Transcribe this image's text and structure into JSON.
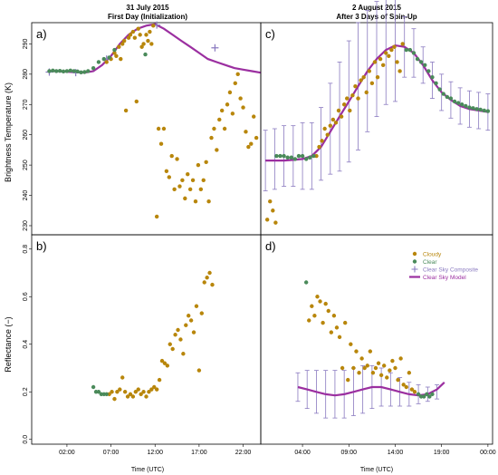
{
  "figure": {
    "col_left_title": [
      "31 July 2015",
      "First Day (Initialization)"
    ],
    "col_right_title": [
      "2 August 2015",
      "After 3 Days of Spin-Up"
    ],
    "ylabel_top": "Brightness Temperature (K)",
    "ylabel_bottom": "Reflectance (−)",
    "xlabel": "Time (UTC)"
  },
  "colors": {
    "cloudy": "#b8860b",
    "clear": "#4a8a5a",
    "composite": "#8a7ac0",
    "model": "#9b2fa0"
  },
  "legend": {
    "placement": "top-right of panel d",
    "items": [
      {
        "label": "Cloudy",
        "kind": "cloudy"
      },
      {
        "label": "Clear",
        "kind": "clear"
      },
      {
        "label": "Clear Sky Composite",
        "kind": "composite"
      },
      {
        "label": "Clear Sky Model",
        "kind": "model"
      }
    ]
  },
  "chart_data": [
    {
      "panel": "a",
      "type": "scatter",
      "x_unit": "hours UTC",
      "xlim": [
        -2,
        24
      ],
      "xticks": [
        2,
        7,
        12,
        17,
        22
      ],
      "xtick_labels": [
        "02:00",
        "07:00",
        "12:00",
        "17:00",
        "22:00"
      ],
      "ylim": [
        227,
        297
      ],
      "yticks": [
        230,
        240,
        250,
        260,
        270,
        280,
        290
      ],
      "model": {
        "x": [
          0,
          1,
          2,
          3,
          4,
          5,
          6,
          7,
          8,
          9,
          10,
          11,
          12,
          13,
          14,
          15,
          16,
          17,
          18,
          19,
          20,
          21,
          22,
          23,
          24
        ],
        "y": [
          281,
          281,
          280.8,
          280.6,
          280.5,
          281,
          283,
          286,
          290,
          293,
          295,
          296,
          296.5,
          295,
          293,
          291,
          289,
          287,
          285,
          284,
          283,
          282,
          281.5,
          281,
          280.5
        ]
      },
      "composite": {
        "x": [
          0,
          3,
          6.5,
          12.2,
          18.8
        ],
        "y": [
          280.7,
          280.5,
          285,
          296.2,
          288.7
        ]
      },
      "clear": {
        "x": [
          0,
          0.4,
          0.8,
          1.2,
          1.6,
          2,
          2.4,
          2.8,
          3.2,
          3.6,
          4,
          4.4,
          5,
          5.6,
          6.2,
          6.8,
          7.4,
          10.9
        ],
        "y": [
          281,
          281.2,
          281,
          281.1,
          280.9,
          281,
          281.2,
          281,
          280.9,
          280.6,
          280.7,
          281,
          282,
          284,
          285,
          285.5,
          288,
          286.5
        ]
      },
      "cloudy": {
        "x": [
          6.5,
          7.0,
          7.4,
          7.6,
          7.9,
          8.1,
          8.3,
          8.5,
          8.7,
          9.0,
          9.2,
          9.5,
          9.7,
          9.9,
          10.1,
          10.3,
          10.5,
          10.7,
          11.0,
          11.2,
          11.4,
          11.6,
          11.8,
          12.2,
          12.4,
          12.7,
          13.0,
          13.3,
          13.6,
          13.9,
          14.2,
          14.5,
          14.8,
          15.1,
          15.4,
          15.7,
          16.0,
          16.3,
          16.6,
          16.9,
          17.2,
          17.5,
          17.8,
          18.1,
          18.4,
          18.7,
          19.0,
          19.3,
          19.6,
          19.9,
          20.2,
          20.5,
          20.8,
          21.1,
          21.4,
          21.7,
          22.0,
          22.3,
          22.6,
          22.9,
          23.2,
          23.5
        ],
        "y": [
          284,
          285,
          287,
          286,
          289,
          285,
          290,
          291,
          268,
          292,
          293,
          294,
          292,
          271,
          295,
          293,
          289,
          290,
          293,
          291,
          294,
          290,
          296,
          233,
          262,
          257,
          262,
          248,
          246,
          253,
          242,
          252,
          243,
          245,
          239,
          247,
          242,
          245,
          238,
          250,
          242,
          245,
          251,
          238,
          259,
          262,
          255,
          265,
          268,
          262,
          270,
          274,
          267,
          277,
          280,
          272,
          269,
          261,
          256,
          257,
          266,
          259
        ]
      }
    },
    {
      "panel": "b",
      "type": "scatter",
      "x_unit": "hours UTC",
      "xlim": [
        -2,
        24
      ],
      "xticks": [
        2,
        7,
        12,
        17,
        22
      ],
      "xtick_labels": [
        "02:00",
        "07:00",
        "12:00",
        "17:00",
        "22:00"
      ],
      "ylim": [
        -0.02,
        0.86
      ],
      "yticks": [
        0.0,
        0.2,
        0.4,
        0.6,
        0.8
      ],
      "ytick_labels": [
        "0.0",
        "0.2",
        "0.4",
        "0.6",
        "0.8"
      ],
      "clear": {
        "x": [
          5.0,
          5.3,
          5.6,
          5.9,
          6.2,
          6.5
        ],
        "y": [
          0.22,
          0.2,
          0.2,
          0.19,
          0.19,
          0.19
        ]
      },
      "cloudy": {
        "x": [
          6.8,
          7.1,
          7.4,
          7.7,
          8.0,
          8.3,
          8.6,
          8.9,
          9.2,
          9.5,
          9.8,
          10.1,
          10.4,
          10.7,
          11.0,
          11.3,
          11.6,
          11.9,
          12.2,
          12.5,
          12.8,
          13.1,
          13.4,
          13.7,
          14.0,
          14.3,
          14.6,
          14.9,
          15.2,
          15.5,
          15.8,
          16.1,
          16.4,
          16.7,
          17.0,
          17.3,
          17.6,
          17.9,
          18.2,
          18.5
        ],
        "y": [
          0.19,
          0.2,
          0.17,
          0.2,
          0.21,
          0.26,
          0.2,
          0.18,
          0.19,
          0.18,
          0.2,
          0.21,
          0.19,
          0.2,
          0.18,
          0.2,
          0.21,
          0.22,
          0.21,
          0.25,
          0.33,
          0.32,
          0.31,
          0.4,
          0.38,
          0.44,
          0.46,
          0.42,
          0.36,
          0.48,
          0.52,
          0.5,
          0.45,
          0.56,
          0.29,
          0.53,
          0.66,
          0.68,
          0.7,
          0.65
        ]
      }
    },
    {
      "panel": "c",
      "type": "scatter",
      "x_unit": "hours UTC",
      "xlim": [
        -0.5,
        24.5
      ],
      "xticks": [
        4,
        9,
        14,
        19,
        24
      ],
      "xtick_labels": [
        "04:00",
        "09:00",
        "14:00",
        "19:00",
        "00:00"
      ],
      "ylim": [
        227,
        297
      ],
      "yticks": [
        230,
        240,
        250,
        260,
        270,
        280,
        290
      ],
      "model": {
        "x": [
          0,
          1,
          2,
          3,
          4,
          5,
          6,
          7,
          8,
          9,
          10,
          11,
          12,
          13,
          14,
          15,
          16,
          17,
          18,
          19,
          20,
          21,
          22,
          23,
          24
        ],
        "y": [
          251.5,
          251.5,
          251.5,
          251.7,
          252,
          253,
          256,
          261,
          266,
          271,
          276,
          281,
          285,
          288,
          289.5,
          289,
          287,
          283,
          278,
          274,
          271.5,
          269.5,
          268.5,
          268,
          267.5
        ]
      },
      "composite_err": {
        "x": [
          0,
          1,
          2,
          3,
          4,
          5,
          6,
          7,
          8,
          9,
          10,
          11,
          12,
          13,
          14,
          15,
          16,
          17,
          18,
          19,
          20,
          21,
          22,
          23,
          24
        ],
        "y": [
          251.5,
          252,
          253,
          253,
          253,
          253,
          257,
          262,
          266,
          271,
          276,
          281,
          285,
          288,
          289,
          289,
          287,
          283,
          278,
          274,
          271.5,
          269.5,
          268.5,
          268,
          267.5
        ],
        "err": [
          10,
          10,
          10,
          10,
          11,
          11,
          12,
          15,
          18,
          20,
          21,
          20,
          19,
          18,
          18,
          10,
          8,
          6,
          6,
          6,
          6,
          6,
          6,
          6,
          6
        ]
      },
      "clear": {
        "x": [
          1.2,
          1.6,
          2.0,
          2.4,
          2.8,
          3.2,
          3.6,
          4.0,
          4.4,
          4.8,
          5.2,
          15.2,
          15.6,
          16.0,
          16.4,
          16.8,
          17.2,
          17.6,
          18.0,
          18.4,
          18.8,
          19.2,
          19.6,
          20.0,
          20.4,
          20.8,
          21.2,
          21.6,
          22.0,
          22.4,
          22.8,
          23.2,
          23.6,
          24.0
        ],
        "y": [
          253,
          253,
          253,
          252.5,
          252.5,
          252,
          253,
          253,
          252,
          252.5,
          253,
          288,
          288,
          287,
          285,
          284,
          283,
          281,
          279,
          277,
          275,
          273.5,
          272.5,
          272,
          271,
          270.5,
          270,
          269.5,
          269,
          268.8,
          268.5,
          268.3,
          268,
          267.8
        ]
      },
      "cloudy": {
        "x": [
          0.2,
          0.5,
          0.8,
          1.1,
          5.5,
          5.8,
          6.1,
          6.4,
          6.7,
          7.0,
          7.3,
          7.6,
          7.9,
          8.2,
          8.5,
          8.8,
          9.1,
          9.4,
          9.7,
          10.0,
          10.3,
          10.6,
          10.9,
          11.2,
          11.5,
          11.8,
          12.1,
          12.4,
          12.7,
          13.0,
          13.3,
          13.6,
          13.9,
          14.2,
          14.5,
          14.8
        ],
        "y": [
          232,
          238,
          235,
          231,
          253,
          256,
          258,
          262,
          260,
          263,
          265,
          264,
          268,
          266,
          270,
          272,
          268,
          273,
          276,
          272,
          278,
          279,
          274,
          281,
          277,
          284,
          279,
          285,
          283,
          287,
          286,
          288,
          289,
          284,
          281,
          290
        ]
      }
    },
    {
      "panel": "d",
      "type": "scatter",
      "x_unit": "hours UTC",
      "xlim": [
        -0.5,
        24.5
      ],
      "xticks": [
        4,
        9,
        14,
        19,
        24
      ],
      "xtick_labels": [
        "04:00",
        "09:00",
        "14:00",
        "19:00",
        "00:00"
      ],
      "ylim": [
        -0.02,
        0.86
      ],
      "yticks": [
        0.0,
        0.2,
        0.4,
        0.6,
        0.8
      ],
      "ytick_labels": [
        "0.0",
        "0.2",
        "0.4",
        "0.6",
        "0.8"
      ],
      "model": {
        "x": [
          3.5,
          4.5,
          5.5,
          6.5,
          7.5,
          8.5,
          9.5,
          10.5,
          11.5,
          12.5,
          13.5,
          14.5,
          15.5,
          16.5,
          17.5,
          18.5,
          19.3
        ],
        "y": [
          0.22,
          0.21,
          0.2,
          0.19,
          0.185,
          0.19,
          0.2,
          0.21,
          0.22,
          0.22,
          0.21,
          0.2,
          0.19,
          0.185,
          0.19,
          0.21,
          0.24
        ]
      },
      "composite_err": {
        "x": [
          3.5,
          4.5,
          5.5,
          6.5,
          7.5,
          8.5,
          9.5,
          10.5,
          11.5,
          12.5,
          13.5,
          14.5,
          15.5,
          16.5,
          17.5,
          18.5
        ],
        "y": [
          0.22,
          0.21,
          0.2,
          0.19,
          0.19,
          0.19,
          0.2,
          0.21,
          0.22,
          0.22,
          0.21,
          0.2,
          0.19,
          0.19,
          0.19,
          0.2
        ],
        "err": [
          0.06,
          0.08,
          0.09,
          0.1,
          0.1,
          0.1,
          0.1,
          0.1,
          0.09,
          0.08,
          0.07,
          0.06,
          0.05,
          0.04,
          0.03,
          0.03
        ]
      },
      "clear": {
        "x": [
          4.4,
          16.5,
          16.8,
          17.1,
          17.4,
          17.7,
          18.0
        ],
        "y": [
          0.66,
          0.19,
          0.18,
          0.18,
          0.19,
          0.18,
          0.19
        ]
      },
      "cloudy": {
        "x": [
          4.7,
          5.0,
          5.3,
          5.6,
          5.9,
          6.2,
          6.5,
          6.8,
          7.1,
          7.4,
          7.7,
          8.0,
          8.3,
          8.6,
          8.9,
          9.2,
          9.5,
          9.8,
          10.1,
          10.4,
          10.7,
          11.0,
          11.3,
          11.6,
          11.9,
          12.2,
          12.5,
          12.8,
          13.1,
          13.4,
          13.7,
          14.0,
          14.3,
          14.6,
          14.9,
          15.2,
          15.5,
          15.8,
          16.1
        ],
        "y": [
          0.5,
          0.56,
          0.52,
          0.6,
          0.58,
          0.49,
          0.57,
          0.54,
          0.45,
          0.52,
          0.47,
          0.43,
          0.3,
          0.49,
          0.25,
          0.4,
          0.3,
          0.37,
          0.28,
          0.34,
          0.3,
          0.31,
          0.37,
          0.28,
          0.3,
          0.32,
          0.27,
          0.31,
          0.26,
          0.29,
          0.33,
          0.3,
          0.25,
          0.34,
          0.23,
          0.22,
          0.28,
          0.21,
          0.2
        ]
      }
    }
  ]
}
